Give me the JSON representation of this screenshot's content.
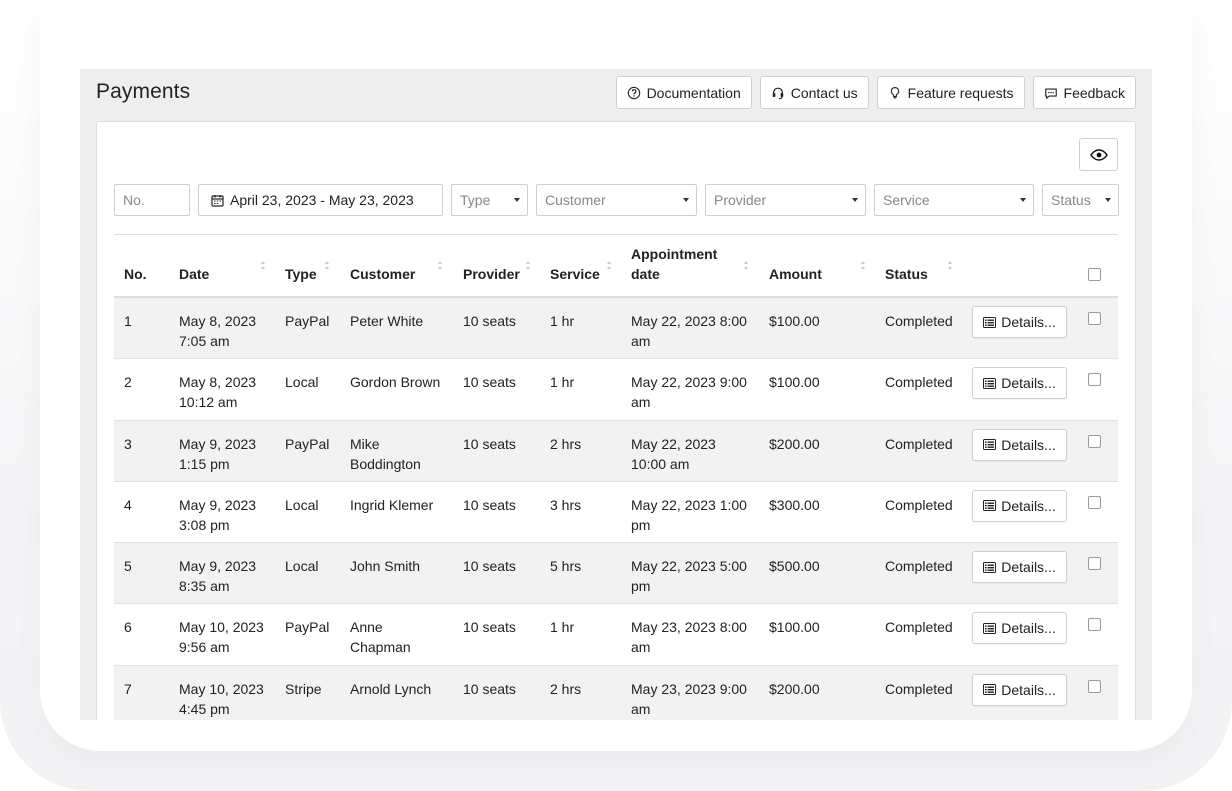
{
  "page": {
    "title": "Payments"
  },
  "toolbar": {
    "documentation": "Documentation",
    "contact": "Contact us",
    "feature_requests": "Feature requests",
    "feedback": "Feedback"
  },
  "filters": {
    "number_placeholder": "No.",
    "date_range": "April 23, 2023 - May 23, 2023",
    "type": "Type",
    "customer": "Customer",
    "provider": "Provider",
    "service": "Service",
    "status": "Status"
  },
  "table": {
    "headers": {
      "no": "No.",
      "date": "Date",
      "type": "Type",
      "customer": "Customer",
      "provider": "Provider",
      "service": "Service",
      "appointment_line1": "Appointment",
      "appointment_line2": "date",
      "amount": "Amount",
      "status": "Status"
    },
    "details_label": "Details...",
    "rows": [
      {
        "no": "1",
        "date1": "May 8, 2023",
        "date2": "7:05 am",
        "type": "PayPal",
        "customer1": "Peter White",
        "customer2": "",
        "provider": "10 seats",
        "service": "1 hr",
        "appt1": "May 22, 2023 8:00",
        "appt2": "am",
        "amount": "$100.00",
        "status": "Completed"
      },
      {
        "no": "2",
        "date1": "May 8, 2023",
        "date2": "10:12 am",
        "type": "Local",
        "customer1": "Gordon Brown",
        "customer2": "",
        "provider": "10 seats",
        "service": "1 hr",
        "appt1": "May 22, 2023 9:00",
        "appt2": "am",
        "amount": "$100.00",
        "status": "Completed"
      },
      {
        "no": "3",
        "date1": "May 9, 2023",
        "date2": "1:15 pm",
        "type": "PayPal",
        "customer1": "Mike",
        "customer2": "Boddington",
        "provider": "10 seats",
        "service": "2 hrs",
        "appt1": "May 22, 2023",
        "appt2": "10:00 am",
        "amount": "$200.00",
        "status": "Completed"
      },
      {
        "no": "4",
        "date1": "May 9, 2023",
        "date2": "3:08 pm",
        "type": "Local",
        "customer1": "Ingrid Klemer",
        "customer2": "",
        "provider": "10 seats",
        "service": "3 hrs",
        "appt1": "May 22, 2023 1:00",
        "appt2": "pm",
        "amount": "$300.00",
        "status": "Completed"
      },
      {
        "no": "5",
        "date1": "May 9, 2023",
        "date2": "8:35 am",
        "type": "Local",
        "customer1": "John Smith",
        "customer2": "",
        "provider": "10 seats",
        "service": "5 hrs",
        "appt1": "May 22, 2023 5:00",
        "appt2": "pm",
        "amount": "$500.00",
        "status": "Completed"
      },
      {
        "no": "6",
        "date1": "May 10, 2023",
        "date2": "9:56 am",
        "type": "PayPal",
        "customer1": "Anne",
        "customer2": "Chapman",
        "provider": "10 seats",
        "service": "1 hr",
        "appt1": "May 23, 2023 8:00",
        "appt2": "am",
        "amount": "$100.00",
        "status": "Completed"
      },
      {
        "no": "7",
        "date1": "May 10, 2023",
        "date2": "4:45 pm",
        "type": "Stripe",
        "customer1": "Arnold Lynch",
        "customer2": "",
        "provider": "10 seats",
        "service": "2 hrs",
        "appt1": "May 23, 2023 9:00",
        "appt2": "am",
        "amount": "$200.00",
        "status": "Completed"
      }
    ]
  },
  "icons": {
    "documentation": "question-circle-icon",
    "contact": "headset-icon",
    "feature_requests": "lightbulb-icon",
    "feedback": "speech-bubble-icon",
    "visibility": "eye-icon",
    "date": "calendar-icon",
    "details": "list-icon"
  },
  "colors": {
    "app_background": "#eeeeee",
    "striped_row": "#f2f2f2",
    "border": "#cfcfcf"
  }
}
